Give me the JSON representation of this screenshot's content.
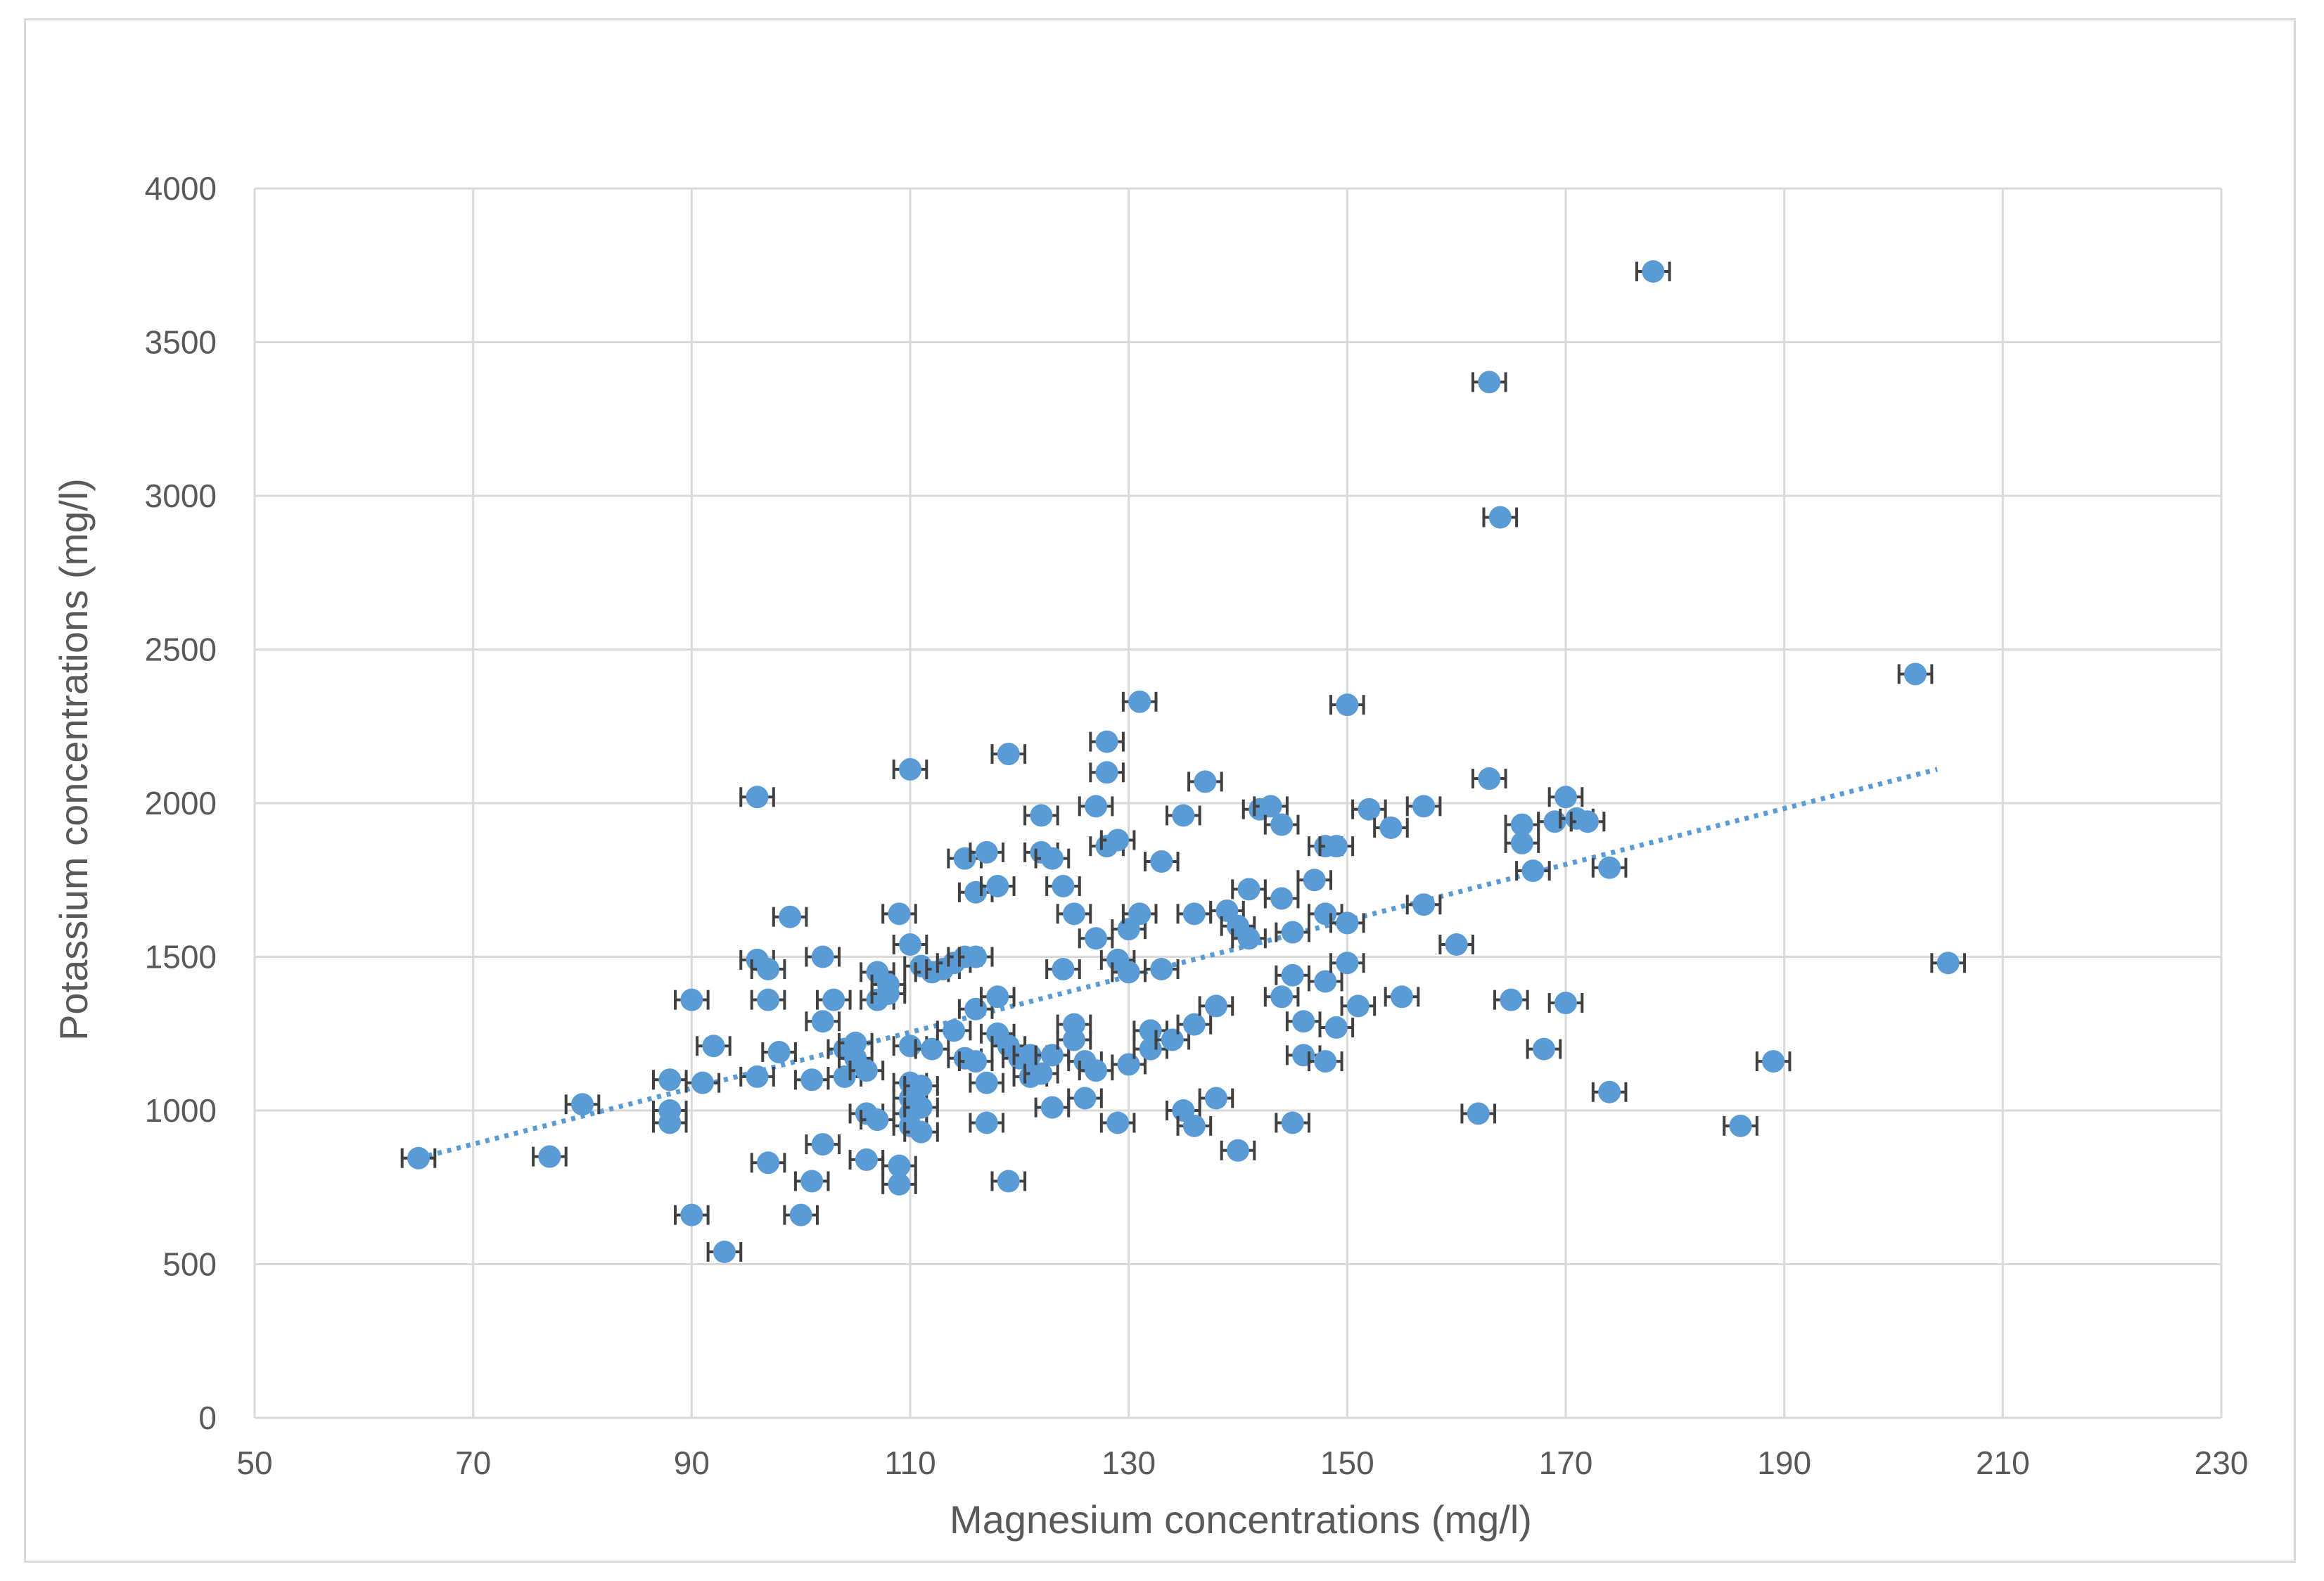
{
  "chart_data": {
    "type": "scatter",
    "xlabel": "Magnesium concentrations (mg/l)",
    "ylabel": "Potassium concentrations (mg/l)",
    "xlim": [
      50,
      230
    ],
    "ylim": [
      0,
      4000
    ],
    "xticks": [
      50,
      70,
      90,
      110,
      130,
      150,
      170,
      190,
      210,
      230
    ],
    "yticks": [
      0,
      500,
      1000,
      1500,
      2000,
      2500,
      3000,
      3500,
      4000
    ],
    "grid": true,
    "marker_color": "#5b9bd5",
    "error_bar_color": "#404040",
    "x_error": 1.5,
    "trendline": {
      "type": "linear",
      "style": "dotted",
      "x": [
        65,
        204
      ],
      "y": [
        845,
        2110
      ]
    },
    "points": [
      [
        65,
        845
      ],
      [
        77,
        850
      ],
      [
        80,
        1020
      ],
      [
        88,
        1100
      ],
      [
        88,
        1000
      ],
      [
        88,
        960
      ],
      [
        90,
        660
      ],
      [
        90,
        1360
      ],
      [
        91,
        1090
      ],
      [
        92,
        1210
      ],
      [
        93,
        540
      ],
      [
        96,
        1110
      ],
      [
        96,
        1490
      ],
      [
        96,
        2020
      ],
      [
        97,
        1460
      ],
      [
        97,
        1360
      ],
      [
        97,
        830
      ],
      [
        98,
        1190
      ],
      [
        99,
        1630
      ],
      [
        100,
        660
      ],
      [
        101,
        770
      ],
      [
        101,
        1100
      ],
      [
        102,
        1290
      ],
      [
        102,
        890
      ],
      [
        102,
        1500
      ],
      [
        103,
        1360
      ],
      [
        104,
        1110
      ],
      [
        104,
        1200
      ],
      [
        105,
        1220
      ],
      [
        105,
        1170
      ],
      [
        106,
        990
      ],
      [
        106,
        840
      ],
      [
        106,
        1130
      ],
      [
        107,
        1450
      ],
      [
        107,
        1360
      ],
      [
        107,
        970
      ],
      [
        108,
        1410
      ],
      [
        108,
        1380
      ],
      [
        109,
        1640
      ],
      [
        109,
        820
      ],
      [
        109,
        760
      ],
      [
        110,
        2110
      ],
      [
        110,
        1540
      ],
      [
        110,
        1210
      ],
      [
        110,
        1090
      ],
      [
        110,
        1040
      ],
      [
        110,
        990
      ],
      [
        110,
        950
      ],
      [
        111,
        1080
      ],
      [
        111,
        1010
      ],
      [
        111,
        930
      ],
      [
        111,
        1470
      ],
      [
        112,
        1450
      ],
      [
        112,
        1200
      ],
      [
        113,
        1460
      ],
      [
        114,
        1480
      ],
      [
        114,
        1260
      ],
      [
        115,
        1500
      ],
      [
        115,
        1820
      ],
      [
        115,
        1170
      ],
      [
        116,
        1330
      ],
      [
        116,
        1500
      ],
      [
        116,
        1160
      ],
      [
        116,
        1710
      ],
      [
        117,
        960
      ],
      [
        117,
        1090
      ],
      [
        117,
        1840
      ],
      [
        118,
        1730
      ],
      [
        118,
        1370
      ],
      [
        118,
        1250
      ],
      [
        119,
        2160
      ],
      [
        119,
        770
      ],
      [
        119,
        1210
      ],
      [
        120,
        1170
      ],
      [
        121,
        1180
      ],
      [
        121,
        1110
      ],
      [
        122,
        1960
      ],
      [
        122,
        1840
      ],
      [
        122,
        1120
      ],
      [
        123,
        1820
      ],
      [
        123,
        1010
      ],
      [
        123,
        1180
      ],
      [
        124,
        1730
      ],
      [
        124,
        1460
      ],
      [
        125,
        1640
      ],
      [
        125,
        1280
      ],
      [
        125,
        1230
      ],
      [
        126,
        1040
      ],
      [
        126,
        1160
      ],
      [
        127,
        1990
      ],
      [
        127,
        1560
      ],
      [
        127,
        1130
      ],
      [
        128,
        2200
      ],
      [
        128,
        2100
      ],
      [
        128,
        1860
      ],
      [
        129,
        1880
      ],
      [
        129,
        1490
      ],
      [
        129,
        960
      ],
      [
        130,
        1590
      ],
      [
        130,
        1450
      ],
      [
        130,
        1150
      ],
      [
        131,
        2330
      ],
      [
        131,
        1640
      ],
      [
        132,
        1200
      ],
      [
        132,
        1260
      ],
      [
        133,
        1810
      ],
      [
        133,
        1460
      ],
      [
        134,
        1230
      ],
      [
        135,
        1960
      ],
      [
        135,
        1000
      ],
      [
        136,
        1280
      ],
      [
        136,
        1640
      ],
      [
        136,
        950
      ],
      [
        137,
        2070
      ],
      [
        138,
        1340
      ],
      [
        138,
        1040
      ],
      [
        139,
        1650
      ],
      [
        140,
        1600
      ],
      [
        140,
        870
      ],
      [
        141,
        1560
      ],
      [
        141,
        1720
      ],
      [
        142,
        1980
      ],
      [
        143,
        1990
      ],
      [
        144,
        1690
      ],
      [
        144,
        1930
      ],
      [
        144,
        1370
      ],
      [
        145,
        1440
      ],
      [
        145,
        960
      ],
      [
        145,
        1580
      ],
      [
        146,
        1290
      ],
      [
        146,
        1180
      ],
      [
        147,
        1750
      ],
      [
        148,
        1860
      ],
      [
        148,
        1640
      ],
      [
        148,
        1420
      ],
      [
        148,
        1160
      ],
      [
        149,
        1860
      ],
      [
        149,
        1270
      ],
      [
        150,
        2320
      ],
      [
        150,
        1610
      ],
      [
        150,
        1480
      ],
      [
        151,
        1340
      ],
      [
        152,
        1980
      ],
      [
        154,
        1920
      ],
      [
        155,
        1370
      ],
      [
        157,
        1990
      ],
      [
        157,
        1670
      ],
      [
        160,
        1540
      ],
      [
        162,
        990
      ],
      [
        163,
        3370
      ],
      [
        163,
        2080
      ],
      [
        164,
        2930
      ],
      [
        165,
        1360
      ],
      [
        166,
        1930
      ],
      [
        166,
        1870
      ],
      [
        167,
        1780
      ],
      [
        168,
        1200
      ],
      [
        169,
        1940
      ],
      [
        170,
        2020
      ],
      [
        170,
        1350
      ],
      [
        171,
        1950
      ],
      [
        172,
        1940
      ],
      [
        174,
        1790
      ],
      [
        174,
        1060
      ],
      [
        178,
        3730
      ],
      [
        186,
        950
      ],
      [
        189,
        1160
      ],
      [
        202,
        2420
      ],
      [
        205,
        1480
      ]
    ]
  }
}
